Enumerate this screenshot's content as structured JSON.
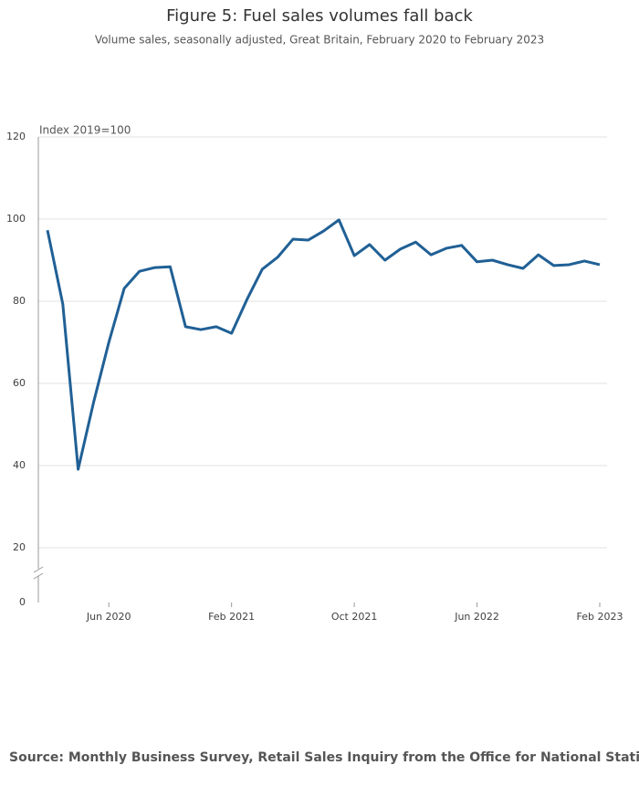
{
  "chart_data": {
    "type": "line",
    "title": "Figure 5: Fuel sales volumes fall back",
    "subtitle": "Volume sales, seasonally adjusted, Great Britain, February 2020 to February 2023",
    "y_label": "Index 2019=100",
    "source": "Source: Monthly Business Survey, Retail Sales Inquiry from the Office for National Statistics",
    "x": [
      "Feb 2020",
      "Mar 2020",
      "Apr 2020",
      "May 2020",
      "Jun 2020",
      "Jul 2020",
      "Aug 2020",
      "Sep 2020",
      "Oct 2020",
      "Nov 2020",
      "Dec 2020",
      "Jan 2021",
      "Feb 2021",
      "Mar 2021",
      "Apr 2021",
      "May 2021",
      "Jun 2021",
      "Jul 2021",
      "Aug 2021",
      "Sep 2021",
      "Oct 2021",
      "Nov 2021",
      "Dec 2021",
      "Jan 2022",
      "Feb 2022",
      "Mar 2022",
      "Apr 2022",
      "May 2022",
      "Jun 2022",
      "Jul 2022",
      "Aug 2022",
      "Sep 2022",
      "Oct 2022",
      "Nov 2022",
      "Dec 2022",
      "Jan 2023",
      "Feb 2023"
    ],
    "series": [
      {
        "name": "Fuel sales volumes",
        "color": "#206095",
        "values": [
          97.3,
          79.3,
          39.1,
          55.3,
          70,
          83.1,
          87.3,
          88.2,
          88.4,
          73.8,
          73.1,
          73.8,
          72.2,
          80.4,
          87.8,
          90.7,
          95.1,
          94.9,
          97.1,
          99.8,
          91.1,
          93.8,
          90,
          92.7,
          94.4,
          91.3,
          92.9,
          93.6,
          89.6,
          90,
          88.9,
          88,
          91.3,
          88.7,
          88.9,
          89.8,
          88.9
        ]
      }
    ],
    "xticks": [
      "Jun 2020",
      "Feb 2021",
      "Oct 2021",
      "Jun 2022",
      "Feb 2023"
    ],
    "ylim": [
      0,
      120
    ],
    "yticks": [
      0,
      20,
      40,
      60,
      80,
      100,
      120
    ],
    "y_break": true,
    "grid": true
  }
}
